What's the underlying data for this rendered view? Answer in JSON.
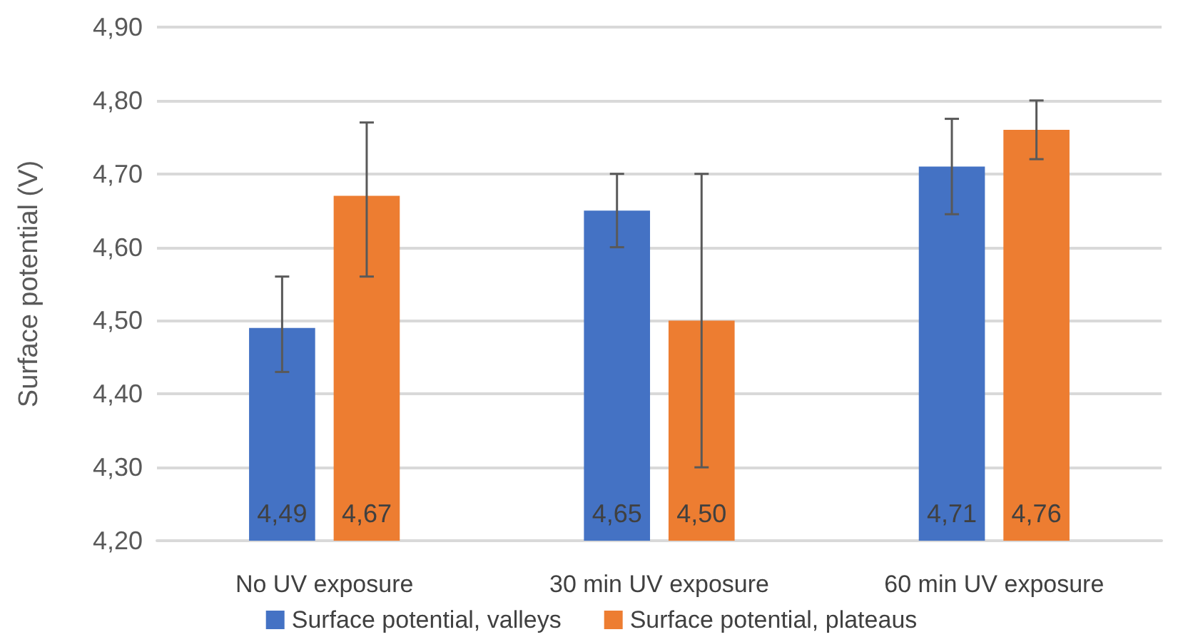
{
  "chart_data": {
    "type": "bar",
    "ylabel": "Surface potential (V)",
    "categories": [
      "No UV exposure",
      "30 min UV exposure",
      "60 min UV exposure"
    ],
    "series": [
      {
        "name": "Surface potential, valleys",
        "color": "#4472c4",
        "values": [
          4.49,
          4.65,
          4.71
        ],
        "value_labels": [
          "4,49",
          "4,65",
          "4,71"
        ],
        "errors": [
          [
            4.43,
            4.56
          ],
          [
            4.6,
            4.7
          ],
          [
            4.645,
            4.775
          ]
        ]
      },
      {
        "name": "Surface potential, plateaus",
        "color": "#ed7d31",
        "values": [
          4.67,
          4.5,
          4.76
        ],
        "value_labels": [
          "4,67",
          "4,50",
          "4,76"
        ],
        "errors": [
          [
            4.56,
            4.77
          ],
          [
            4.3,
            4.7
          ],
          [
            4.72,
            4.8
          ]
        ]
      }
    ],
    "ylim": [
      4.2,
      4.9
    ],
    "yticks": [
      {
        "value": 4.2,
        "label": "4,20"
      },
      {
        "value": 4.3,
        "label": "4,30"
      },
      {
        "value": 4.4,
        "label": "4,40"
      },
      {
        "value": 4.5,
        "label": "4,50"
      },
      {
        "value": 4.6,
        "label": "4,60"
      },
      {
        "value": 4.7,
        "label": "4,70"
      },
      {
        "value": 4.8,
        "label": "4,80"
      },
      {
        "value": 4.9,
        "label": "4,90"
      }
    ],
    "grid": "y",
    "legend": "bottom"
  }
}
